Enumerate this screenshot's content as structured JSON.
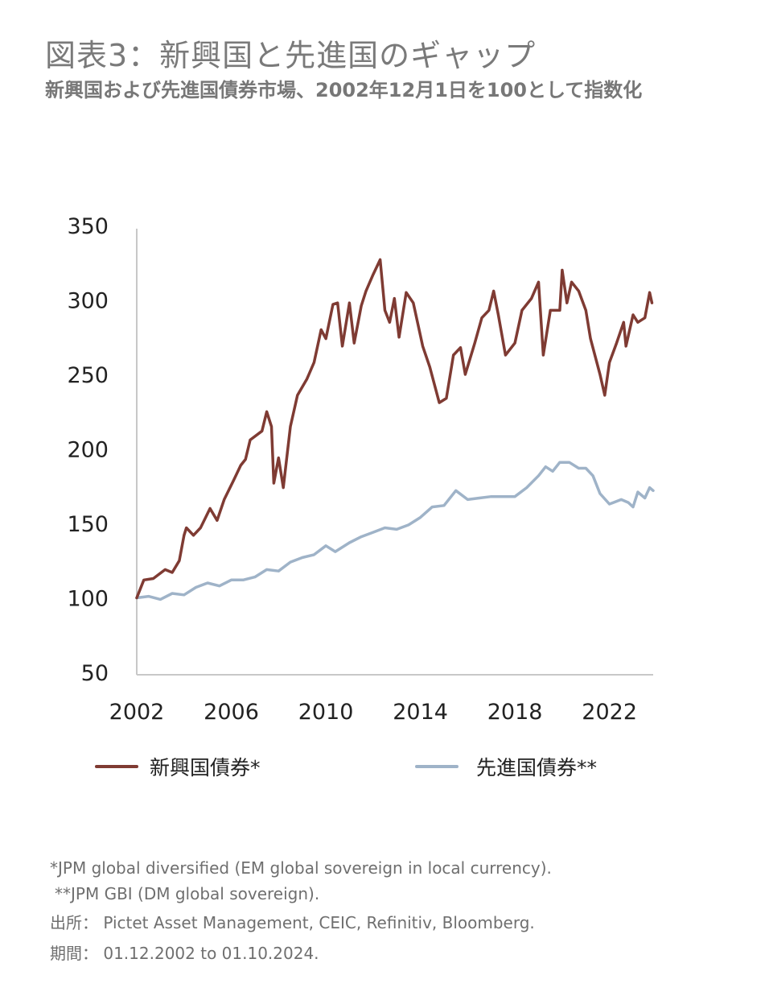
{
  "header": {
    "title": "図表3：新興国と先進国のギャップ",
    "subtitle": "新興国および先進国債券市場、2002年12月1日を100として指数化"
  },
  "chart_data": {
    "type": "line",
    "title": "図表3：新興国と先進国のギャップ",
    "subtitle": "新興国および先進国債券市場、2002年12月1日を100として指数化",
    "xlabel": "",
    "ylabel": "",
    "xlim": [
      2002,
      2023.85
    ],
    "ylim": [
      50,
      350
    ],
    "x_ticks": [
      "2002",
      "2006",
      "2010",
      "2014",
      "2018",
      "2022"
    ],
    "x_tick_values": [
      2002,
      2006,
      2010,
      2014,
      2018,
      2022
    ],
    "y_ticks": [
      "350",
      "300",
      "250",
      "200",
      "150",
      "100",
      "50"
    ],
    "y_tick_values": [
      350,
      300,
      250,
      200,
      150,
      100,
      50
    ],
    "grid": false,
    "legend_position": "bottom",
    "series": [
      {
        "name": "新興国債券*",
        "color": "#7f3b33",
        "x": [
          2002.0,
          2002.3,
          2002.7,
          2003.2,
          2003.5,
          2003.8,
          2004.0,
          2004.1,
          2004.4,
          2004.7,
          2005.1,
          2005.4,
          2005.7,
          2006.1,
          2006.4,
          2006.6,
          2006.8,
          2007.3,
          2007.5,
          2007.7,
          2007.8,
          2008.0,
          2008.2,
          2008.5,
          2008.8,
          2009.2,
          2009.5,
          2009.8,
          2010.0,
          2010.3,
          2010.5,
          2010.7,
          2011.0,
          2011.2,
          2011.5,
          2011.7,
          2012.0,
          2012.3,
          2012.5,
          2012.7,
          2012.9,
          2013.1,
          2013.4,
          2013.7,
          2014.1,
          2014.4,
          2014.8,
          2015.1,
          2015.4,
          2015.7,
          2015.9,
          2016.3,
          2016.6,
          2016.9,
          2017.1,
          2017.3,
          2017.6,
          2018.0,
          2018.3,
          2018.7,
          2019.0,
          2019.2,
          2019.5,
          2019.9,
          2020.0,
          2020.2,
          2020.4,
          2020.7,
          2021.0,
          2021.2,
          2021.6,
          2021.8,
          2022.0,
          2022.3,
          2022.6,
          2022.7,
          2023.0,
          2023.2,
          2023.5,
          2023.7,
          2023.8
        ],
        "values": [
          100,
          112,
          113,
          119,
          117,
          125,
          142,
          147,
          142,
          147,
          160,
          152,
          166,
          179,
          189,
          193,
          206,
          212,
          225,
          215,
          177,
          194,
          174,
          215,
          236,
          247,
          258,
          280,
          274,
          297,
          298,
          269,
          298,
          271,
          296,
          306,
          317,
          327,
          293,
          285,
          301,
          275,
          305,
          298,
          269,
          255,
          231,
          234,
          263,
          268,
          250,
          271,
          288,
          293,
          306,
          290,
          263,
          271,
          293,
          301,
          312,
          263,
          293,
          293,
          320,
          298,
          312,
          306,
          293,
          274,
          250,
          236,
          258,
          271,
          285,
          269,
          290,
          285,
          288,
          305,
          298
        ]
      },
      {
        "name": "先進国債券**",
        "color": "#9fb3c8",
        "x": [
          2002.0,
          2002.5,
          2003.0,
          2003.5,
          2004.0,
          2004.5,
          2005.0,
          2005.5,
          2006.0,
          2006.5,
          2007.0,
          2007.5,
          2008.0,
          2008.5,
          2009.0,
          2009.5,
          2010.0,
          2010.4,
          2011.0,
          2011.5,
          2012.0,
          2012.5,
          2013.0,
          2013.5,
          2014.0,
          2014.5,
          2015.0,
          2015.5,
          2016.0,
          2016.5,
          2017.0,
          2017.5,
          2018.0,
          2018.5,
          2019.0,
          2019.3,
          2019.6,
          2019.9,
          2020.3,
          2020.7,
          2021.0,
          2021.3,
          2021.6,
          2022.0,
          2022.5,
          2022.8,
          2023.0,
          2023.2,
          2023.5,
          2023.7,
          2023.85
        ],
        "values": [
          100,
          101,
          99,
          103,
          102,
          107,
          110,
          108,
          112,
          112,
          114,
          119,
          118,
          124,
          127,
          129,
          135,
          131,
          137,
          141,
          144,
          147,
          146,
          149,
          154,
          161,
          162,
          172,
          166,
          167,
          168,
          168,
          168,
          174,
          182,
          188,
          185,
          191,
          191,
          187,
          187,
          182,
          170,
          163,
          166,
          164,
          161,
          171,
          167,
          174,
          172
        ]
      }
    ]
  },
  "legend": {
    "items": [
      {
        "label": "新興国債券*",
        "color": "#7f3b33"
      },
      {
        "label": "先進国債券**",
        "color": "#9fb3c8"
      }
    ]
  },
  "notes": {
    "footnote_em": "*JPM global diversified (EM global sovereign in local currency).",
    "footnote_dm": "**JPM GBI (DM global sovereign).",
    "source_label": "出所：",
    "source_text": "Pictet Asset Management, CEIC, Refinitiv, Bloomberg.",
    "period_label": "期間：",
    "period_text": "01.12.2002 to 01.10.2024."
  }
}
